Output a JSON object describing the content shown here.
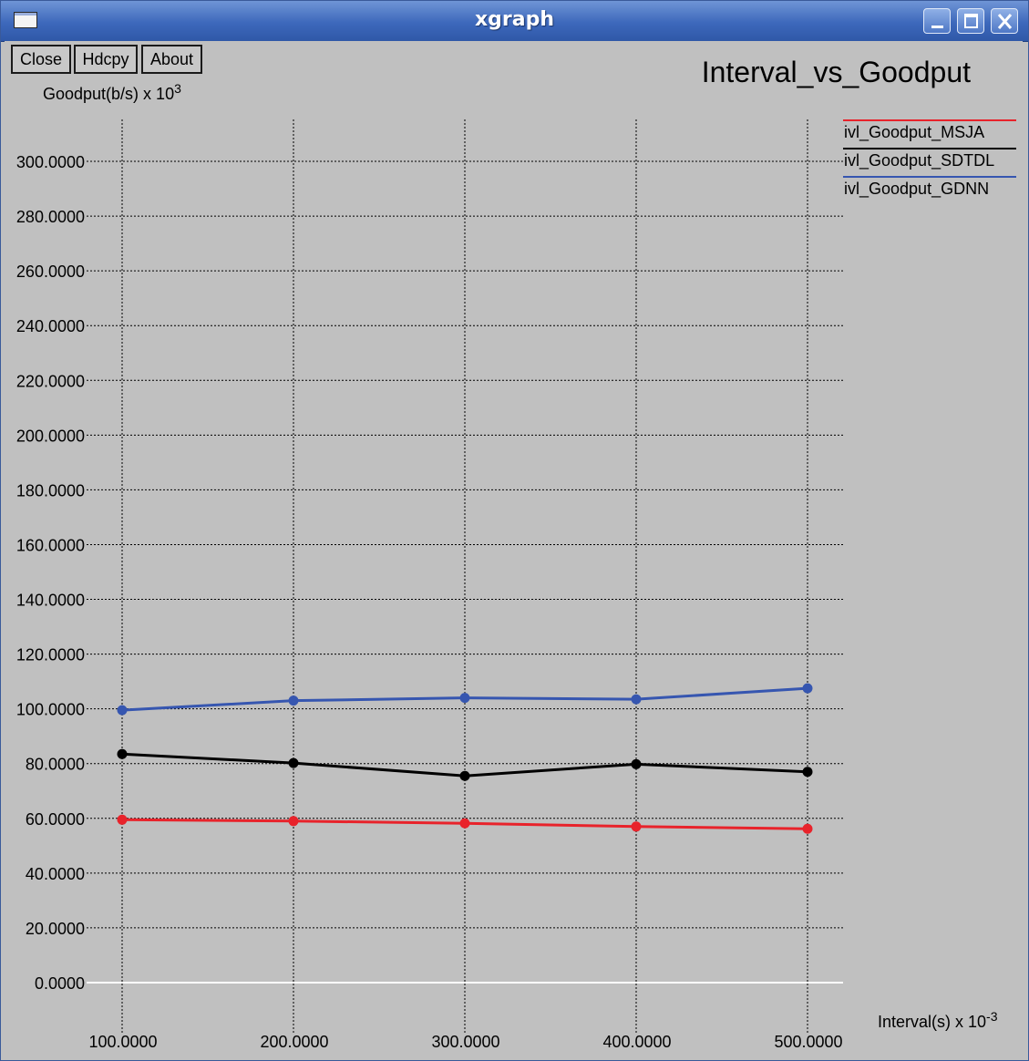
{
  "window": {
    "title": "xgraph"
  },
  "toolbar": {
    "close_label": "Close",
    "hdcpy_label": "Hdcpy",
    "about_label": "About"
  },
  "colors": {
    "background": "#c0c0c0",
    "grid": "#000000",
    "msja": "#e8232b",
    "sdtdl": "#000000",
    "gdnn": "#3656b0"
  },
  "chart_data": {
    "type": "line",
    "title": "Interval_vs_Goodput",
    "xlabel": "Interval(s) x 10",
    "xlabel_exp": "-3",
    "ylabel": "Goodput(b/s) x 10",
    "ylabel_exp": "3",
    "x": [
      100,
      200,
      300,
      400,
      500
    ],
    "xticks": [
      "100.0000",
      "200.0000",
      "300.0000",
      "400.0000",
      "500.0000"
    ],
    "ytick_values": [
      0,
      20,
      40,
      60,
      80,
      100,
      120,
      140,
      160,
      180,
      200,
      220,
      240,
      260,
      280,
      300
    ],
    "ytick_labels": [
      "0.0000",
      "20.0000",
      "40.0000",
      "60.0000",
      "80.0000",
      "100.0000",
      "120.0000",
      "140.0000",
      "160.0000",
      "180.0000",
      "200.0000",
      "220.0000",
      "240.0000",
      "260.0000",
      "280.0000",
      "300.0000"
    ],
    "xlim": [
      100,
      500
    ],
    "ylim": [
      0,
      300
    ],
    "grid": true,
    "legend_position": "top-right",
    "series": [
      {
        "name": "ivl_Goodput_MSJA",
        "color": "#e8232b",
        "values": [
          59.5,
          59,
          58.2,
          57,
          56.2
        ]
      },
      {
        "name": "ivl_Goodput_SDTDL",
        "color": "#000000",
        "values": [
          83.5,
          80.2,
          75.5,
          79.8,
          77
        ]
      },
      {
        "name": "ivl_Goodput_GDNN",
        "color": "#3656b0",
        "values": [
          99.5,
          103,
          104,
          103.5,
          107.5
        ]
      }
    ]
  }
}
